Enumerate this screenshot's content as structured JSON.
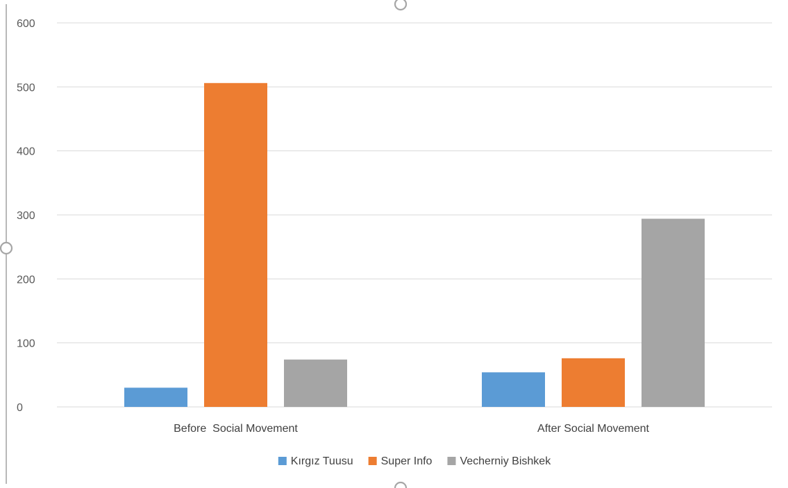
{
  "chart_data": {
    "type": "bar",
    "categories": [
      "Before  Social Movement",
      "After Social Movement"
    ],
    "series": [
      {
        "name": "Kırgız Tuusu",
        "values": [
          30,
          54
        ],
        "color": "#5b9bd5"
      },
      {
        "name": "Super Info",
        "values": [
          506,
          76
        ],
        "color": "#ed7d31"
      },
      {
        "name": "Vecherniy Bishkek",
        "values": [
          74,
          294
        ],
        "color": "#a5a5a5"
      }
    ],
    "title": "",
    "xlabel": "",
    "ylabel": "",
    "ylim": [
      0,
      600
    ],
    "yticks": [
      0,
      100,
      200,
      300,
      400,
      500,
      600
    ],
    "grid": true,
    "legend": "bottom-center"
  }
}
